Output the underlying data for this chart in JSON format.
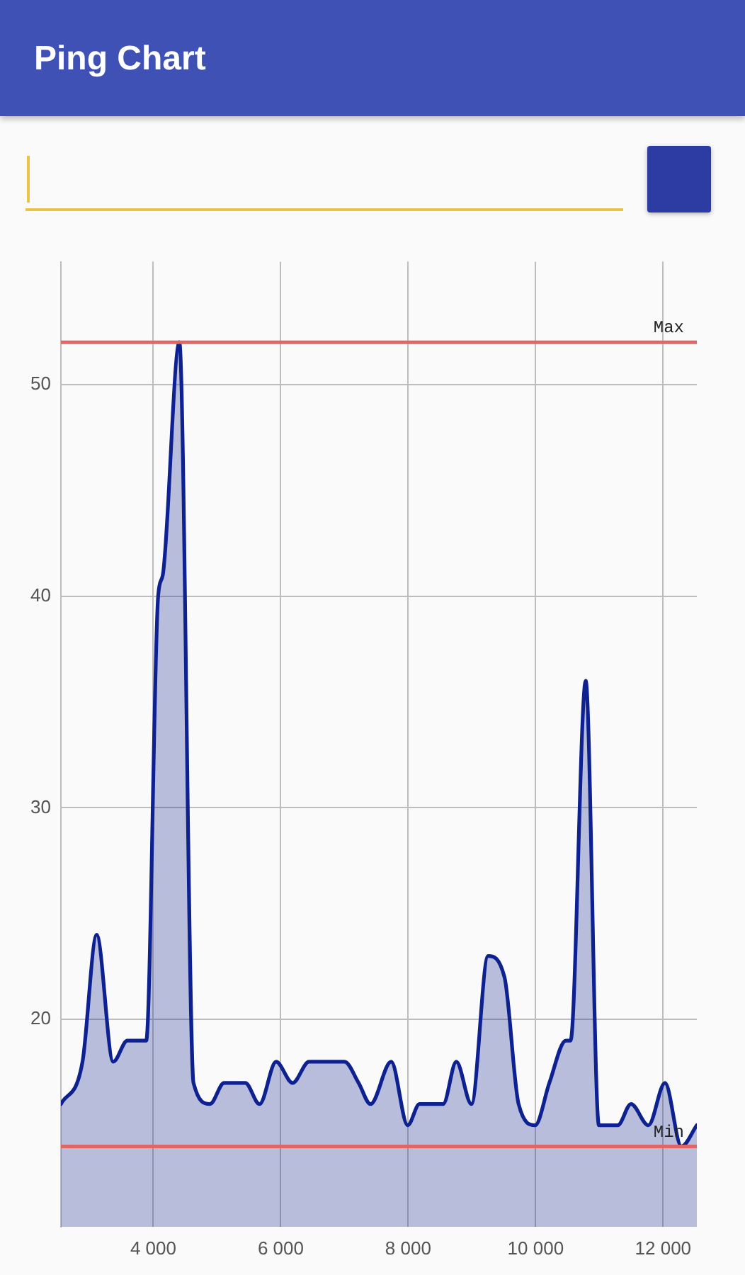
{
  "chart_data": {
    "type": "area",
    "title": "Ping Chart",
    "x": [
      2550,
      2889,
      3111,
      3371,
      3593,
      3889,
      4076,
      4149,
      4409,
      4631,
      4889,
      5111,
      5444,
      5667,
      5927,
      6186,
      6444,
      7000,
      7222,
      7409,
      7733,
      7993,
      8177,
      8549,
      8755,
      8993,
      9253,
      9511,
      9733,
      9993,
      10215,
      10475,
      10548,
      10786,
      10993,
      11288,
      11497,
      11770,
      12030,
      12288,
      12530
    ],
    "values": [
      16,
      18,
      24,
      18,
      19,
      19,
      40,
      41,
      52,
      17,
      16,
      17,
      17,
      16,
      18,
      17,
      18,
      18,
      17,
      16,
      18,
      15,
      16,
      16,
      18,
      16,
      23,
      22,
      16,
      15,
      17,
      19,
      19,
      36,
      15,
      15,
      16,
      15,
      17,
      14,
      15
    ],
    "color": "#0d2190",
    "xlim": [
      2550,
      12530
    ],
    "xticks": [
      {
        "value": 4000,
        "label": "4 000"
      },
      {
        "value": 6000,
        "label": "6 000"
      },
      {
        "value": 8000,
        "label": "8 000"
      },
      {
        "value": 10000,
        "label": "10 000"
      },
      {
        "value": 12000,
        "label": "12 000"
      }
    ],
    "ylim": [
      10.2,
      55.8
    ],
    "yticks": [
      20,
      30,
      40,
      50
    ],
    "grid": true,
    "marker": "none",
    "ref_lines": [
      {
        "axis": "y",
        "value": 52,
        "label": "Max",
        "color": "#e06666"
      },
      {
        "axis": "y",
        "value": 14,
        "label": "Min",
        "color": "#e06666"
      }
    ]
  }
}
